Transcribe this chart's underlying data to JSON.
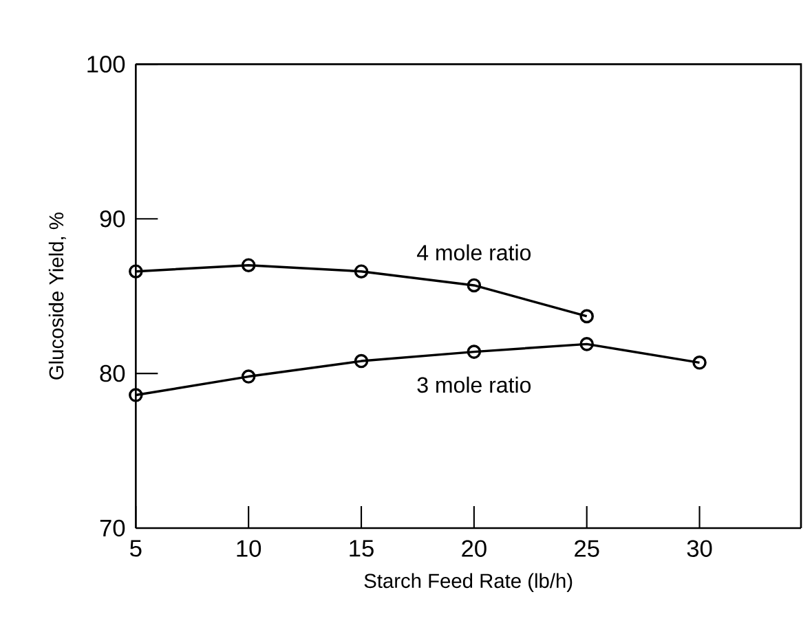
{
  "chart_data": {
    "type": "line",
    "xlabel": "Starch Feed Rate (lb/h)",
    "ylabel": "Glucoside Yield, %",
    "x": [
      5,
      10,
      15,
      20,
      25,
      30
    ],
    "series": [
      {
        "name": "4 mole ratio",
        "color": "#000000",
        "values": [
          86.6,
          87.0,
          86.6,
          85.7,
          83.7,
          null
        ]
      },
      {
        "name": "3 mole ratio",
        "color": "#000000",
        "values": [
          78.6,
          79.8,
          80.8,
          81.4,
          81.9,
          80.7
        ]
      }
    ],
    "xlim": [
      5,
      34.5
    ],
    "ylim": [
      70,
      100
    ],
    "xticks": [
      5,
      10,
      15,
      20,
      25,
      30
    ],
    "yticks": [
      70,
      80,
      90,
      100
    ],
    "marker": "circle",
    "line_style": "solid"
  }
}
